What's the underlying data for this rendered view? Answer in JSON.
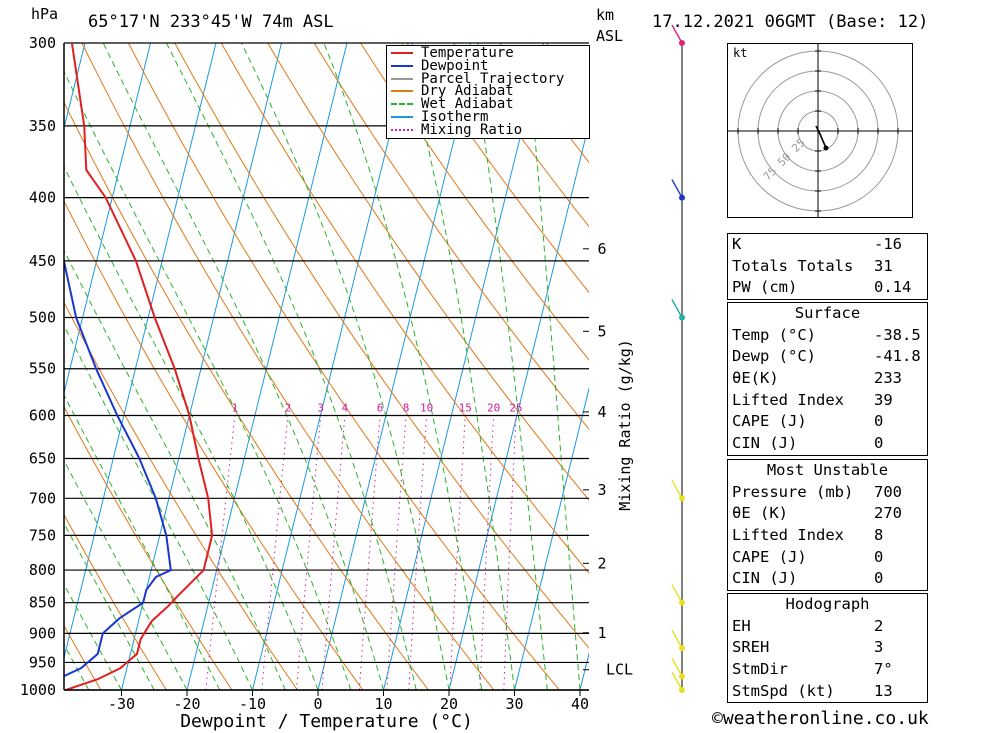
{
  "header": {
    "pressure_unit": "hPa",
    "location": "65°17'N  233°45'W  74m  ASL",
    "km_label": "km",
    "asl_label": "ASL",
    "datetime": "17.12.2021  06GMT  (Base: 12)"
  },
  "chart_data": {
    "type": "line",
    "title": "",
    "xlabel": "Dewpoint / Temperature (°C)",
    "ylabel": "hPa",
    "y2label": "Mixing Ratio (g/kg)",
    "x_ticks": [
      -30,
      -20,
      -10,
      0,
      10,
      20,
      30,
      40
    ],
    "pressure_levels": [
      300,
      350,
      400,
      450,
      500,
      550,
      600,
      650,
      700,
      750,
      800,
      850,
      900,
      950,
      1000
    ],
    "km_ticks": [
      {
        "label": "1",
        "p": 899
      },
      {
        "label": "2",
        "p": 790
      },
      {
        "label": "3",
        "p": 689
      },
      {
        "label": "4",
        "p": 596
      },
      {
        "label": "5",
        "p": 513
      },
      {
        "label": "6",
        "p": 440
      }
    ],
    "lcl": {
      "label": "LCL",
      "p": 963
    },
    "mixing_ratio_labels": [
      "1",
      "2",
      "3",
      "4",
      "6",
      "8",
      "10",
      "15",
      "20",
      "25"
    ],
    "legend": {
      "placement": "top-right",
      "items": [
        {
          "label": "Temperature",
          "color": "#e02020",
          "style": "solid"
        },
        {
          "label": "Dewpoint",
          "color": "#1a36d0",
          "style": "solid"
        },
        {
          "label": "Parcel Trajectory",
          "color": "#999999",
          "style": "solid"
        },
        {
          "label": "Dry Adiabat",
          "color": "#e07818",
          "style": "solid"
        },
        {
          "label": "Wet Adiabat",
          "color": "#2ab32a",
          "style": "dashed"
        },
        {
          "label": "Isotherm",
          "color": "#1e98e0",
          "style": "solid"
        },
        {
          "label": "Mixing Ratio",
          "color": "#d0209a",
          "style": "dotted"
        }
      ]
    },
    "series": [
      {
        "name": "Temperature",
        "color": "#e02020",
        "points": [
          {
            "p": 1000,
            "t": -38.5
          },
          {
            "p": 980,
            "t": -34
          },
          {
            "p": 960,
            "t": -31
          },
          {
            "p": 935,
            "t": -29
          },
          {
            "p": 910,
            "t": -29
          },
          {
            "p": 880,
            "t": -28
          },
          {
            "p": 855,
            "t": -26
          },
          {
            "p": 840,
            "t": -25
          },
          {
            "p": 800,
            "t": -22
          },
          {
            "p": 750,
            "t": -22
          },
          {
            "p": 700,
            "t": -24
          },
          {
            "p": 650,
            "t": -27
          },
          {
            "p": 600,
            "t": -30
          },
          {
            "p": 550,
            "t": -34
          },
          {
            "p": 500,
            "t": -39
          },
          {
            "p": 450,
            "t": -44
          },
          {
            "p": 400,
            "t": -51
          },
          {
            "p": 380,
            "t": -55
          },
          {
            "p": 350,
            "t": -57
          },
          {
            "p": 300,
            "t": -62
          }
        ]
      },
      {
        "name": "Dewpoint",
        "color": "#1a36d0",
        "points": [
          {
            "p": 1000,
            "t": -41.8
          },
          {
            "p": 985,
            "t": -41
          },
          {
            "p": 960,
            "t": -37
          },
          {
            "p": 935,
            "t": -35
          },
          {
            "p": 900,
            "t": -35
          },
          {
            "p": 875,
            "t": -33
          },
          {
            "p": 850,
            "t": -30
          },
          {
            "p": 830,
            "t": -30
          },
          {
            "p": 810,
            "t": -29
          },
          {
            "p": 800,
            "t": -27
          },
          {
            "p": 750,
            "t": -29
          },
          {
            "p": 700,
            "t": -32
          },
          {
            "p": 650,
            "t": -36
          },
          {
            "p": 600,
            "t": -41
          },
          {
            "p": 550,
            "t": -46
          },
          {
            "p": 500,
            "t": -51
          },
          {
            "p": 450,
            "t": -55
          },
          {
            "p": 400,
            "t": -61
          },
          {
            "p": 390,
            "t": -62
          },
          {
            "p": 350,
            "t": -62
          },
          {
            "p": 300,
            "t": -64
          }
        ]
      }
    ],
    "wind_profile": [
      {
        "p": 300,
        "marker_color": "#e0207a"
      },
      {
        "p": 400,
        "marker_color": "#1a36d0"
      },
      {
        "p": 500,
        "marker_color": "#20b0a0"
      },
      {
        "p": 700,
        "marker_color": "#e8e020"
      },
      {
        "p": 850,
        "marker_color": "#e8e020"
      },
      {
        "p": 925,
        "marker_color": "#e8e020"
      },
      {
        "p": 975,
        "marker_color": "#e8e020"
      },
      {
        "p": 1000,
        "marker_color": "#e8e020"
      }
    ],
    "hodograph": {
      "unit_label": "kt",
      "ring_labels": [
        "25",
        "50",
        "75"
      ]
    }
  },
  "indices": {
    "rows": [
      {
        "label": "K",
        "value": "-16"
      },
      {
        "label": "Totals Totals",
        "value": "31"
      },
      {
        "label": "PW (cm)",
        "value": "0.14"
      }
    ]
  },
  "surface": {
    "title": "Surface",
    "rows": [
      {
        "label": "Temp (°C)",
        "value": "-38.5"
      },
      {
        "label": "Dewp (°C)",
        "value": "-41.8"
      },
      {
        "label": "θE(K)",
        "value": "233"
      },
      {
        "label": "Lifted Index",
        "value": "39"
      },
      {
        "label": "CAPE (J)",
        "value": "0"
      },
      {
        "label": "CIN (J)",
        "value": "0"
      }
    ]
  },
  "most_unstable": {
    "title": "Most Unstable",
    "rows": [
      {
        "label": "Pressure (mb)",
        "value": "700"
      },
      {
        "label": "θE (K)",
        "value": "270"
      },
      {
        "label": "Lifted Index",
        "value": "8"
      },
      {
        "label": "CAPE (J)",
        "value": "0"
      },
      {
        "label": "CIN (J)",
        "value": "0"
      }
    ]
  },
  "hodograph_stats": {
    "title": "Hodograph",
    "rows": [
      {
        "label": "EH",
        "value": "2"
      },
      {
        "label": "SREH",
        "value": "3"
      },
      {
        "label": "StmDir",
        "value": "7°"
      },
      {
        "label": "StmSpd (kt)",
        "value": "13"
      }
    ]
  },
  "footer": {
    "copyright": "©weatheronline.co.uk"
  }
}
